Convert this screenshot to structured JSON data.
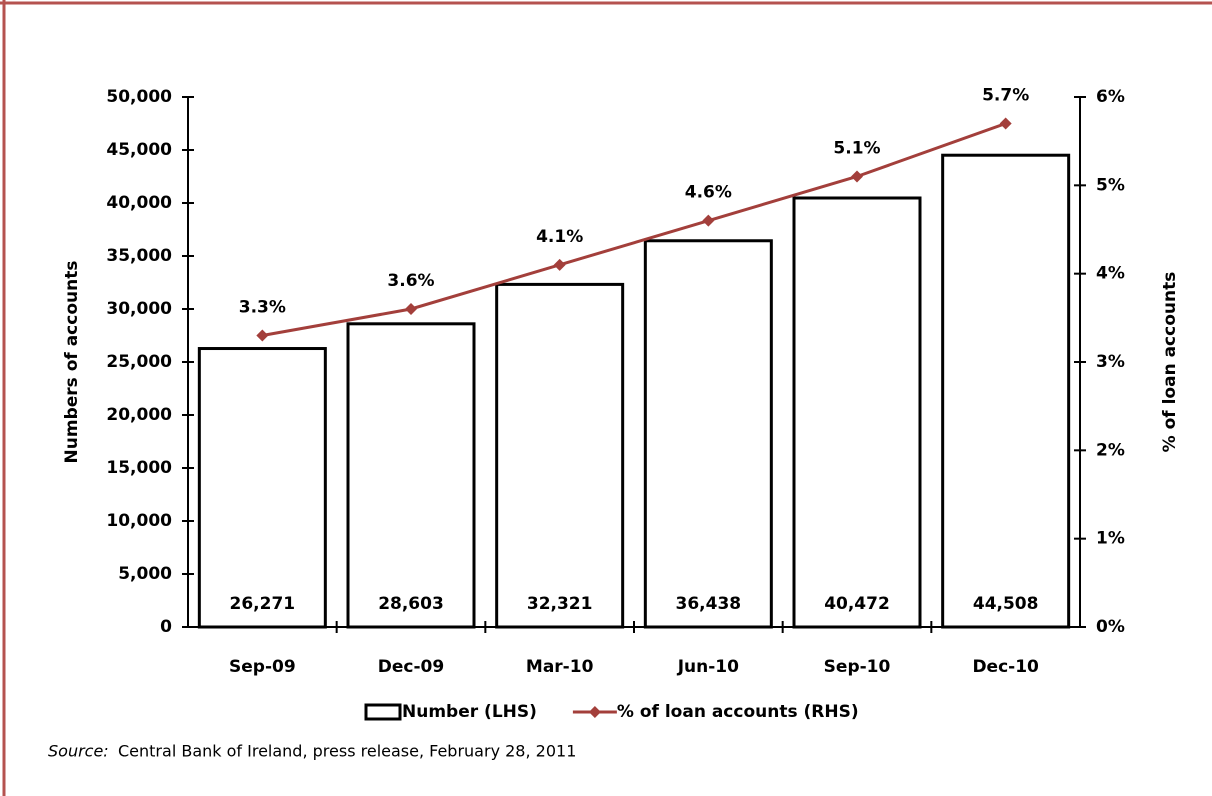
{
  "chart_data": {
    "type": "bar_line",
    "categories": [
      "Sep-09",
      "Dec-09",
      "Mar-10",
      "Jun-10",
      "Sep-10",
      "Dec-10"
    ],
    "series": [
      {
        "name": "Number (LHS)",
        "type": "bar",
        "color": "#ffffff",
        "stroke": "#000000",
        "values": [
          26271,
          28603,
          32321,
          36438,
          40472,
          44508
        ],
        "value_labels": [
          "26,271",
          "28,603",
          "32,321",
          "36,438",
          "40,472",
          "44,508"
        ]
      },
      {
        "name": "% of loan accounts (RHS)",
        "type": "line",
        "axis": "y2",
        "color": "#a33f3b",
        "values": [
          3.3,
          3.6,
          4.1,
          4.6,
          5.1,
          5.7
        ],
        "value_labels": [
          "3.3%",
          "3.6%",
          "4.1%",
          "4.6%",
          "5.1%",
          "5.7%"
        ]
      }
    ],
    "ylabel": "Numbers of accounts",
    "y2label": "% of loan accounts",
    "ylim": [
      0,
      50000
    ],
    "yticks": [
      0,
      {
        "value": 5000,
        "label": "5,000"
      },
      {
        "value": 10000,
        "label": "10,000"
      },
      {
        "value": 15000,
        "label": "15,000"
      },
      {
        "value": 20000,
        "label": "20,000"
      },
      {
        "value": 25000,
        "label": "25,000"
      },
      {
        "value": 30000,
        "label": "30,000"
      },
      {
        "value": 35000,
        "label": "35,000"
      },
      {
        "value": 40000,
        "label": "40,000"
      },
      {
        "value": 45000,
        "label": "45,000"
      },
      {
        "value": 50000,
        "label": "50,000"
      }
    ],
    "y2lim": [
      0,
      6
    ],
    "y2ticks": [
      {
        "value": 0,
        "label": "0%"
      },
      {
        "value": 1,
        "label": "1%"
      },
      {
        "value": 2,
        "label": "2%"
      },
      {
        "value": 3,
        "label": "3%"
      },
      {
        "value": 4,
        "label": "4%"
      },
      {
        "value": 5,
        "label": "5%"
      },
      {
        "value": 6,
        "label": "6%"
      }
    ],
    "legend": "bottom",
    "grid": false,
    "source": {
      "label": "Source:",
      "text": "Central Bank of Ireland, press release, February 28, 2011"
    }
  }
}
